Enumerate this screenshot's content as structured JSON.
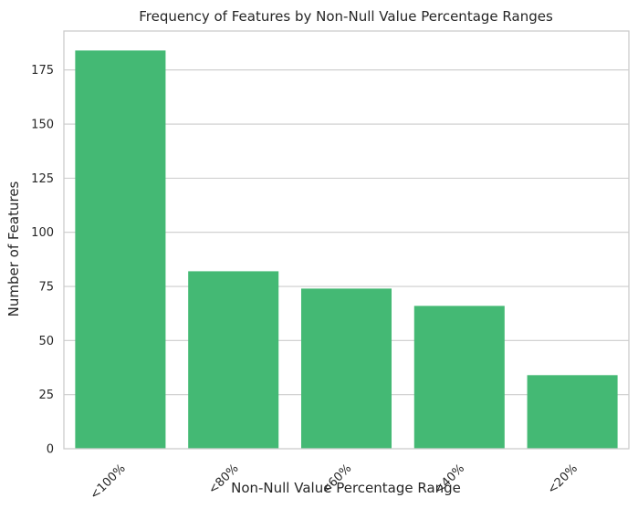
{
  "chart_data": {
    "type": "bar",
    "title": "Frequency of Features by Non-Null Value Percentage Ranges",
    "xlabel": "Non-Null Value Percentage Range",
    "ylabel": "Number of Features",
    "categories": [
      "<100%",
      "<80%",
      "<60%",
      "<40%",
      "<20%"
    ],
    "values": [
      184,
      82,
      74,
      66,
      34
    ],
    "ylim": [
      0,
      193
    ],
    "yticks": [
      0,
      25,
      50,
      75,
      100,
      125,
      150,
      175
    ],
    "grid": "horizontal",
    "bar_color": "#44b974",
    "grid_color": "#cccccc",
    "spine_color": "#cccccc",
    "background": "#ffffff"
  }
}
